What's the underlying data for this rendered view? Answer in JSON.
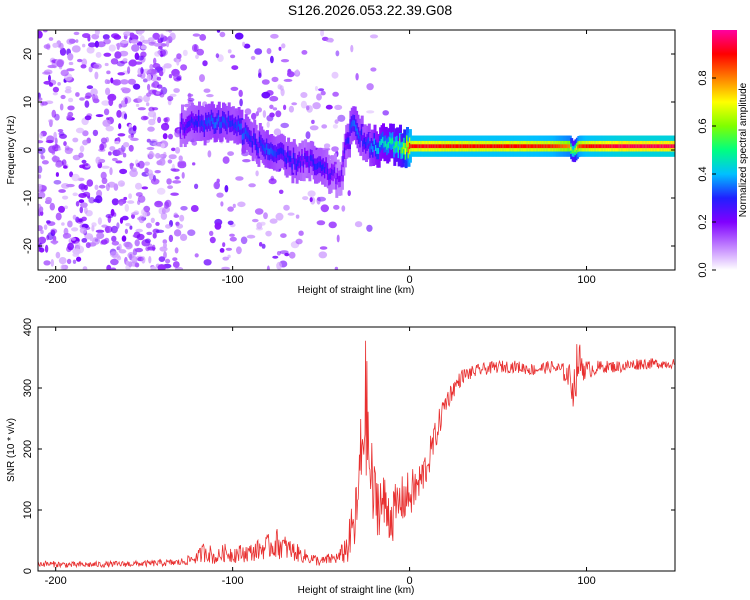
{
  "title": "S126.2026.053.22.39.G08",
  "chart_data": [
    {
      "type": "heatmap",
      "name": "spectrogram",
      "xlabel": "Height of straight line (km)",
      "ylabel": "Frequency (Hz)",
      "xlim": [
        -210,
        150
      ],
      "ylim": [
        -25,
        25
      ],
      "xticks": [
        -200,
        -100,
        0,
        100
      ],
      "yticks": [
        -20,
        -10,
        0,
        10,
        20
      ],
      "colorbar": {
        "label": "Normalized spectral amplitude",
        "range": [
          0,
          1
        ],
        "ticks": [
          "0.0",
          "0.2",
          "0.4",
          "0.6",
          "0.8"
        ],
        "colors": [
          "#ffffff",
          "#c080ff",
          "#8000ff",
          "#2020ff",
          "#00c0ff",
          "#00ff80",
          "#80ff00",
          "#ffff00",
          "#ff8000",
          "#ff0000",
          "#ff00a0"
        ]
      },
      "ridge": {
        "x": [
          -130,
          -120,
          -110,
          -100,
          -95,
          -90,
          -85,
          -80,
          -75,
          -70,
          -65,
          -60,
          -55,
          -50,
          -45,
          -40,
          -35,
          -32,
          -30,
          -28,
          -25,
          -20,
          -15,
          -10,
          -5,
          0,
          10,
          20,
          40,
          60,
          80,
          90,
          92,
          95,
          100,
          120,
          150
        ],
        "y": [
          5,
          5.5,
          6,
          5.5,
          4,
          2,
          1,
          0,
          -1,
          -2,
          -2.5,
          -2,
          -3,
          -4,
          -5,
          -6,
          3,
          5,
          5,
          3,
          1,
          0.5,
          1,
          1.5,
          0.5,
          0.8,
          0.8,
          0.8,
          0.8,
          0.8,
          0.8,
          0.8,
          -0.5,
          0.8,
          0.8,
          0.8,
          0.8
        ],
        "amplitude": [
          0.25,
          0.3,
          0.35,
          0.3,
          0.35,
          0.3,
          0.3,
          0.35,
          0.3,
          0.3,
          0.3,
          0.25,
          0.3,
          0.3,
          0.25,
          0.2,
          0.3,
          0.35,
          0.35,
          0.3,
          0.3,
          0.4,
          0.45,
          0.5,
          0.55,
          0.9,
          0.92,
          0.9,
          0.9,
          0.9,
          0.88,
          0.8,
          0.5,
          0.85,
          0.9,
          0.95,
          0.95
        ]
      }
    },
    {
      "type": "line",
      "name": "snr",
      "xlabel": "Height of straight line (km)",
      "ylabel": "SNR (10 * v/v)",
      "xlim": [
        -210,
        150
      ],
      "ylim": [
        0,
        400
      ],
      "xticks": [
        -200,
        -100,
        0,
        100
      ],
      "yticks": [
        0,
        100,
        200,
        300,
        400
      ],
      "color": "#e83030",
      "x": [
        -210,
        -190,
        -170,
        -150,
        -130,
        -120,
        -115,
        -110,
        -105,
        -100,
        -90,
        -80,
        -75,
        -70,
        -60,
        -50,
        -45,
        -40,
        -35,
        -30,
        -27,
        -25,
        -22,
        -20,
        -15,
        -10,
        -5,
        0,
        5,
        10,
        15,
        20,
        25,
        30,
        40,
        50,
        60,
        70,
        80,
        85,
        90,
        93,
        95,
        100,
        110,
        120,
        130,
        140,
        150
      ],
      "values": [
        12,
        10,
        11,
        12,
        14,
        22,
        35,
        20,
        30,
        28,
        30,
        40,
        45,
        38,
        25,
        15,
        20,
        22,
        40,
        90,
        200,
        280,
        150,
        120,
        110,
        90,
        115,
        125,
        140,
        175,
        225,
        275,
        300,
        320,
        330,
        335,
        335,
        330,
        335,
        330,
        320,
        300,
        345,
        330,
        335,
        335,
        340,
        340,
        340
      ],
      "noise": [
        5,
        5,
        5,
        5,
        6,
        10,
        20,
        10,
        15,
        15,
        15,
        20,
        25,
        20,
        12,
        8,
        10,
        10,
        30,
        60,
        90,
        110,
        90,
        60,
        55,
        45,
        40,
        40,
        35,
        30,
        25,
        20,
        15,
        12,
        10,
        10,
        10,
        10,
        10,
        12,
        20,
        40,
        40,
        15,
        10,
        10,
        10,
        8,
        8
      ]
    }
  ]
}
